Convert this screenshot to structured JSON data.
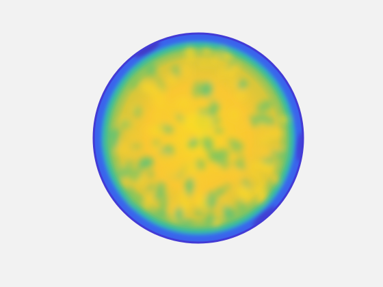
{
  "figure": {
    "background": "#f2f2f2"
  },
  "chart_data": {
    "type": "heatmap",
    "shape": "disk",
    "colormap": "parula",
    "colors": {
      "low": "#3e26a8",
      "mid_low": "#2f7cf5",
      "mid": "#23b4c0",
      "mid_high": "#8fc54a",
      "high": "#f9c533",
      "peak": "#f9e024"
    },
    "axes_visible": false,
    "grid": false,
    "legend": "none",
    "title": "",
    "xlabel": "",
    "ylabel": "",
    "clim": [
      0,
      1
    ],
    "radial_profile": [
      {
        "r": 0.0,
        "value": 0.97
      },
      {
        "r": 0.25,
        "value": 0.9
      },
      {
        "r": 0.5,
        "value": 0.86
      },
      {
        "r": 0.75,
        "value": 0.8
      },
      {
        "r": 0.88,
        "value": 0.62
      },
      {
        "r": 0.94,
        "value": 0.42
      },
      {
        "r": 1.0,
        "value": 0.12
      }
    ],
    "texture": {
      "kind": "mottled",
      "low_patch_value": 0.6,
      "high_patch_value": 0.95
    },
    "rim_low_regions": [
      {
        "angle_deg": 120,
        "value": 0.05
      },
      {
        "angle_deg": 310,
        "value": 0.08
      },
      {
        "angle_deg": 355,
        "value": 0.1
      }
    ]
  }
}
